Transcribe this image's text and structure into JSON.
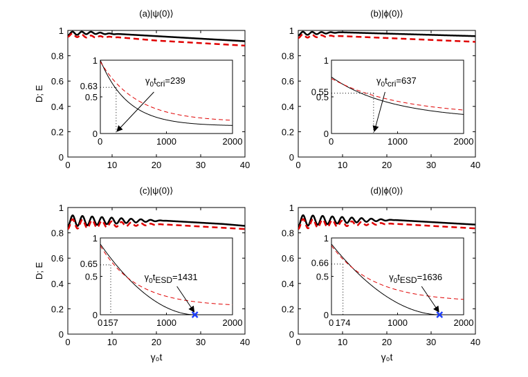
{
  "figure": {
    "panels": [
      {
        "id": "a",
        "title_prefix": "(a)|ψ(0)⟩",
        "ylabel": "D; E",
        "xlabel": "",
        "xlim": [
          0,
          40
        ],
        "ylim": [
          0,
          1
        ],
        "xticks": [
          "0",
          "10",
          "20",
          "30",
          "40"
        ],
        "yticks": [
          "0",
          "0.2",
          "0.4",
          "0.6",
          "0.8",
          "1"
        ],
        "inset": {
          "xlim": [
            0,
            2000
          ],
          "ylim": [
            0,
            1
          ],
          "xticks": [
            "0",
            "1000",
            "2000"
          ],
          "yticks": [
            "0",
            "0.5",
            "1"
          ],
          "extra_yticks": [
            "0.63"
          ],
          "extra_xticks": [],
          "annotation": {
            "base": "γ",
            "sub": "0",
            "mid": "t",
            "sub2": "cri",
            "tail": "=239"
          }
        }
      },
      {
        "id": "b",
        "title_prefix": "(b)|ϕ(0)⟩",
        "ylabel": "",
        "xlabel": "",
        "xlim": [
          0,
          40
        ],
        "ylim": [
          0,
          1
        ],
        "xticks": [
          "0",
          "10",
          "20",
          "30",
          "40"
        ],
        "yticks": [
          "0",
          "0.2",
          "0.4",
          "0.6",
          "0.8",
          "1"
        ],
        "inset": {
          "xlim": [
            0,
            2000
          ],
          "ylim": [
            0,
            1
          ],
          "xticks": [
            "0",
            "1000",
            "2000"
          ],
          "yticks": [
            "0",
            "0.5",
            "1"
          ],
          "extra_yticks": [
            "0.55"
          ],
          "extra_xticks": [],
          "annotation": {
            "base": "γ",
            "sub": "0",
            "mid": "t",
            "sub2": "cri",
            "tail": "=637"
          }
        }
      },
      {
        "id": "c",
        "title_prefix": "(c)|ψ(0)⟩",
        "ylabel": "D; E",
        "xlabel": "γ₀t",
        "xlim": [
          0,
          40
        ],
        "ylim": [
          0,
          1
        ],
        "xticks": [
          "0",
          "10",
          "20",
          "30",
          "40"
        ],
        "yticks": [
          "0",
          "0.2",
          "0.4",
          "0.6",
          "0.8",
          "1"
        ],
        "inset": {
          "xlim": [
            0,
            2000
          ],
          "ylim": [
            0,
            1
          ],
          "xticks": [
            "0",
            "1000",
            "2000"
          ],
          "yticks": [
            "0",
            "0.5",
            "1"
          ],
          "extra_yticks": [
            "0.65"
          ],
          "extra_xticks": [
            "157"
          ],
          "annotation": {
            "base": "γ",
            "sub": "0",
            "mid": "t",
            "sub2": "ESD",
            "tail": "=1431"
          }
        }
      },
      {
        "id": "d",
        "title_prefix": "(d)|ϕ(0)⟩",
        "ylabel": "",
        "xlabel": "γ₀t",
        "xlim": [
          0,
          40
        ],
        "ylim": [
          0,
          1
        ],
        "xticks": [
          "0",
          "10",
          "20",
          "30",
          "40"
        ],
        "yticks": [
          "0",
          "0.2",
          "0.4",
          "0.6",
          "0.8",
          "1"
        ],
        "inset": {
          "xlim": [
            0,
            2000
          ],
          "ylim": [
            0,
            1
          ],
          "xticks": [
            "0",
            "1000",
            "2000"
          ],
          "yticks": [
            "0",
            "0.5",
            "1"
          ],
          "extra_yticks": [
            "0.66"
          ],
          "extra_xticks": [
            "174"
          ],
          "annotation": {
            "base": "γ",
            "sub": "0",
            "mid": "t",
            "sub2": "ESD",
            "tail": "=1636"
          }
        }
      }
    ]
  },
  "colors": {
    "black_series": "#000000",
    "red_series": "#e00000",
    "marker": "#1f3fff"
  },
  "chart_data": [
    {
      "type": "line",
      "title": "(a)|ψ(0)⟩",
      "ylabel": "D; E",
      "xlabel": "",
      "xlim": [
        0,
        40
      ],
      "ylim": [
        0,
        1
      ],
      "legend": "none",
      "series": [
        {
          "name": "D (solid black)",
          "x": [
            0,
            5,
            10,
            15,
            20,
            25,
            30,
            35,
            40
          ],
          "y": [
            0.99,
            0.99,
            0.975,
            0.965,
            0.955,
            0.945,
            0.935,
            0.925,
            0.915
          ],
          "oscillation_until": 12
        },
        {
          "name": "E (dashed red)",
          "x": [
            0,
            5,
            10,
            15,
            20,
            25,
            30,
            35,
            40
          ],
          "y": [
            0.98,
            0.96,
            0.95,
            0.935,
            0.92,
            0.91,
            0.9,
            0.89,
            0.88
          ],
          "oscillation_until": 12
        }
      ],
      "inset": {
        "type": "line",
        "xlim": [
          0,
          2000
        ],
        "ylim": [
          0,
          1
        ],
        "series": [
          {
            "name": "D (solid black)",
            "start": 1.0,
            "decay": 0.0011,
            "end_value": 0.11
          },
          {
            "name": "E (dashed red)",
            "start": 0.98,
            "decay": 0.00085,
            "end_value": 0.18
          }
        ],
        "crossing": {
          "x": 239,
          "y": 0.63
        },
        "annotation": "γ₀t_cri=239"
      }
    },
    {
      "type": "line",
      "title": "(b)|ϕ(0)⟩",
      "ylabel": "",
      "xlabel": "",
      "xlim": [
        0,
        40
      ],
      "ylim": [
        0,
        1
      ],
      "legend": "none",
      "series": [
        {
          "name": "D (solid black)",
          "x": [
            0,
            10,
            20,
            30,
            40
          ],
          "y": [
            0.99,
            0.985,
            0.975,
            0.965,
            0.955
          ],
          "oscillation_until": 10
        },
        {
          "name": "E (dashed red)",
          "x": [
            0,
            10,
            20,
            30,
            40
          ],
          "y": [
            0.97,
            0.955,
            0.94,
            0.925,
            0.91
          ],
          "oscillation_until": 10
        }
      ],
      "inset": {
        "type": "line",
        "xlim": [
          0,
          2000
        ],
        "ylim": [
          0,
          1
        ],
        "series": [
          {
            "name": "D (solid black)",
            "start": 0.77,
            "decay": 0.00054,
            "end_value": 0.26
          },
          {
            "name": "E (dashed red)",
            "start": 0.75,
            "decay": 0.0005,
            "end_value": 0.32
          }
        ],
        "crossing": {
          "x": 637,
          "y": 0.55
        },
        "annotation": "γ₀t_cri=637"
      }
    },
    {
      "type": "line",
      "title": "(c)|ψ(0)⟩",
      "ylabel": "D; E",
      "xlabel": "γ₀t",
      "xlim": [
        0,
        40
      ],
      "ylim": [
        0,
        1
      ],
      "legend": "none",
      "series": [
        {
          "name": "D (solid black)",
          "x": [
            0,
            5,
            10,
            15,
            20,
            25,
            30,
            35,
            40
          ],
          "y": [
            0.94,
            0.93,
            0.92,
            0.91,
            0.9,
            0.89,
            0.88,
            0.87,
            0.855
          ],
          "oscillation_until": 22
        },
        {
          "name": "E (dashed red)",
          "x": [
            0,
            5,
            10,
            15,
            20,
            25,
            30,
            35,
            40
          ],
          "y": [
            0.91,
            0.9,
            0.89,
            0.88,
            0.87,
            0.86,
            0.85,
            0.84,
            0.83
          ],
          "oscillation_until": 22
        }
      ],
      "inset": {
        "type": "line",
        "xlim": [
          0,
          2000
        ],
        "ylim": [
          0,
          1
        ],
        "series": [
          {
            "name": "D (solid black)",
            "start": 0.92,
            "esd": 1431
          },
          {
            "name": "E (dashed red)",
            "start": 0.9,
            "decay": 0.00085,
            "end_value": 0.13
          }
        ],
        "crossing": {
          "x": 157,
          "y": 0.65
        },
        "esd_point": {
          "x": 1431,
          "y": 0
        },
        "annotation": "γ₀t_ESD=1431"
      }
    },
    {
      "type": "line",
      "title": "(d)|ϕ(0)⟩",
      "ylabel": "",
      "xlabel": "γ₀t",
      "xlim": [
        0,
        40
      ],
      "ylim": [
        0,
        1
      ],
      "legend": "none",
      "series": [
        {
          "name": "D (solid black)",
          "x": [
            0,
            5,
            10,
            15,
            20,
            25,
            30,
            35,
            40
          ],
          "y": [
            0.94,
            0.935,
            0.925,
            0.915,
            0.905,
            0.895,
            0.885,
            0.875,
            0.865
          ],
          "oscillation_until": 22
        },
        {
          "name": "E (dashed red)",
          "x": [
            0,
            5,
            10,
            15,
            20,
            25,
            30,
            35,
            40
          ],
          "y": [
            0.91,
            0.905,
            0.895,
            0.885,
            0.875,
            0.865,
            0.855,
            0.845,
            0.835
          ],
          "oscillation_until": 22
        }
      ],
      "inset": {
        "type": "line",
        "xlim": [
          0,
          2000
        ],
        "ylim": [
          0,
          1
        ],
        "series": [
          {
            "name": "D (solid black)",
            "start": 0.92,
            "esd": 1636
          },
          {
            "name": "E (dashed red)",
            "start": 0.9,
            "decay": 0.00075,
            "end_value": 0.2
          }
        ],
        "crossing": {
          "x": 174,
          "y": 0.66
        },
        "esd_point": {
          "x": 1636,
          "y": 0
        },
        "annotation": "γ₀t_ESD=1636"
      }
    }
  ]
}
